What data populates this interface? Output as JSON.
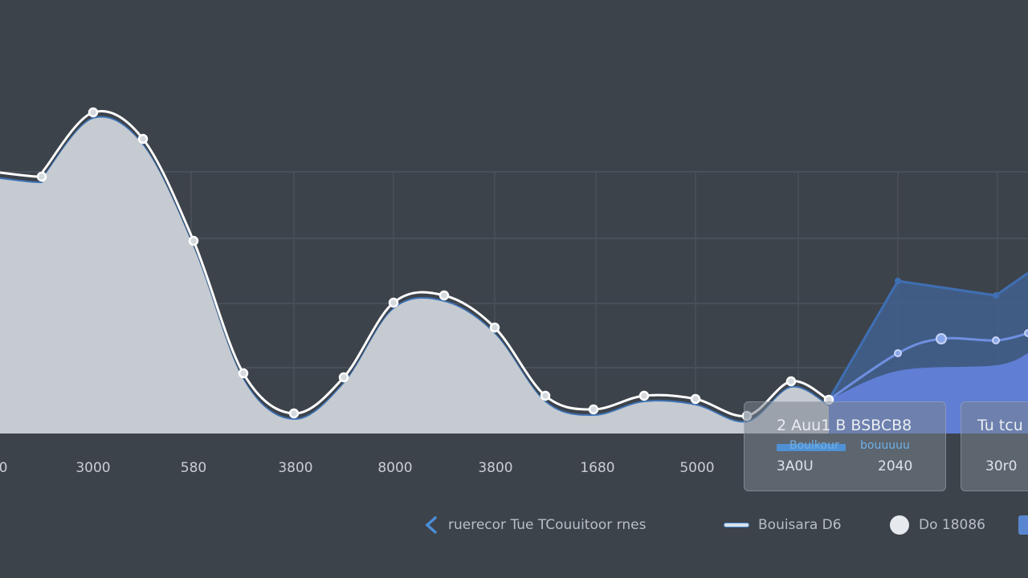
{
  "chart_data": {
    "type": "area",
    "title": "",
    "xlabel": "",
    "ylabel": "",
    "grid": true,
    "x_tick_labels": [
      "0",
      "3000",
      "580",
      "3800",
      "8000",
      "3800",
      "1680",
      "5000"
    ],
    "series": [
      {
        "role": "filled-area",
        "color": "#c5cbd1",
        "stroke": "#ffffff",
        "values": [
          215,
          220,
          210,
          140,
          173,
          300,
          465,
          515,
          470,
          377,
          368,
          408,
          493,
          510,
          493,
          497,
          518,
          475,
          498
        ]
      },
      {
        "role": "upper-band",
        "color": "#3f6fb3",
        "values": [
          498,
          350,
          368,
          340
        ]
      },
      {
        "role": "mid-line",
        "color": "#6f8fe0",
        "values": [
          498,
          440,
          422,
          424,
          415
        ]
      },
      {
        "role": "lower-area",
        "color": "#5f7ed4",
        "values": [
          498,
          462,
          455,
          440
        ]
      }
    ]
  },
  "tooltips": [
    {
      "title": "2 Auu1 B BSBCB8",
      "sub": "Boulkour",
      "sub2": "bouuuuu",
      "value1": "3A0U",
      "value2": "2040"
    },
    {
      "title": "Tu tcu",
      "value1": "30r0"
    }
  ],
  "legend": [
    {
      "icon": "chevron-left-icon",
      "label": "ruerecor Tue TCouuitoor rnes",
      "color": "#4a8fd6"
    },
    {
      "icon": "line-icon",
      "label": "Bouisara D6",
      "color": "#dde2e8"
    },
    {
      "icon": "dot-icon",
      "label": "Do 18086",
      "color": "#e6e9ed"
    },
    {
      "icon": "square-icon",
      "label": "",
      "color": "#5a86cf"
    }
  ]
}
